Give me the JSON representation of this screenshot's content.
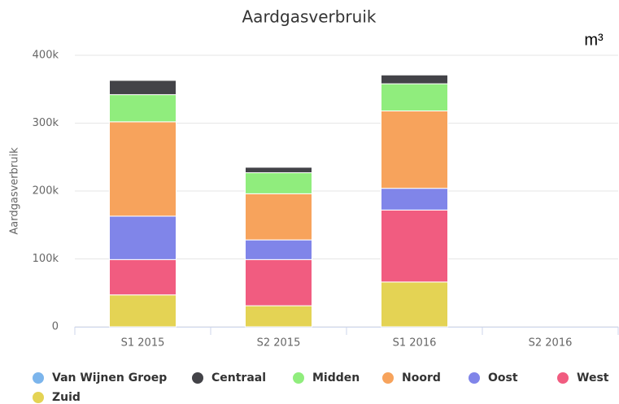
{
  "chart_data": {
    "type": "stacked_bar",
    "title": "Aardgasverbruik",
    "annotation": "m³",
    "ylabel": "Aardgasverbruik",
    "categories": [
      "S1 2015",
      "S2 2015",
      "S1 2016",
      "S2 2016"
    ],
    "series": [
      {
        "name": "Van Wijnen Groep",
        "color": "#7cb5ec",
        "values": [
          0,
          0,
          0,
          null
        ]
      },
      {
        "name": "Centraal",
        "color": "#434348",
        "values": [
          21000,
          8000,
          13000,
          null
        ]
      },
      {
        "name": "Midden",
        "color": "#90ed7d",
        "values": [
          40000,
          31000,
          40000,
          null
        ]
      },
      {
        "name": "Noord",
        "color": "#f7a35c",
        "values": [
          139000,
          68000,
          114000,
          null
        ]
      },
      {
        "name": "Oost",
        "color": "#8085e9",
        "values": [
          64000,
          29000,
          32000,
          null
        ]
      },
      {
        "name": "West",
        "color": "#f15c80",
        "values": [
          52000,
          68000,
          106000,
          null
        ]
      },
      {
        "name": "Zuid",
        "color": "#e4d354",
        "values": [
          47000,
          31000,
          66000,
          null
        ]
      }
    ],
    "ylim": [
      0,
      400000
    ],
    "yticks": [
      0,
      {
        "value": 100000,
        "label": "100k"
      },
      {
        "value": 200000,
        "label": "200k"
      },
      {
        "value": 300000,
        "label": "300k"
      },
      {
        "value": 400000,
        "label": "400k"
      }
    ],
    "grid": true,
    "legend": "bottom"
  }
}
